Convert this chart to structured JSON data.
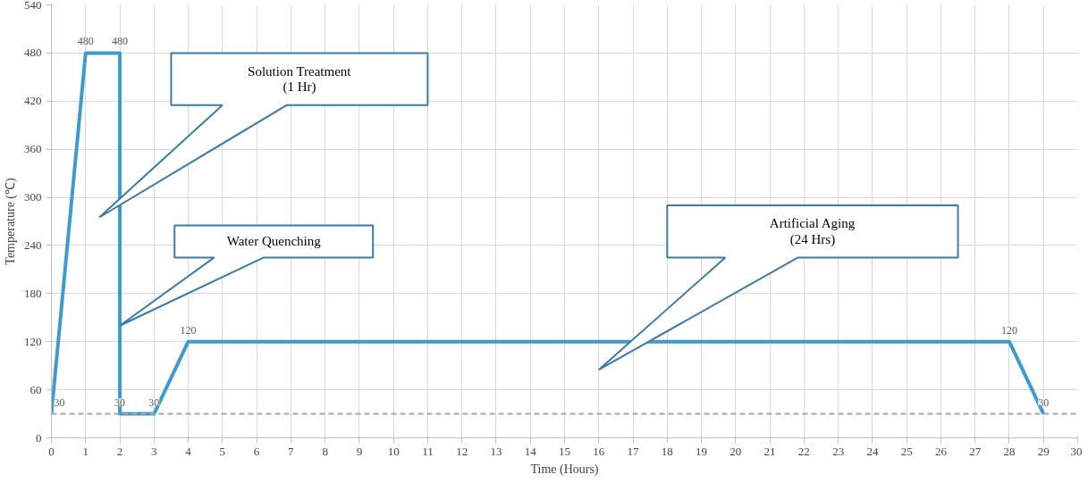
{
  "chart_data": {
    "type": "line",
    "xlabel": "Time (Hours)",
    "ylabel": "Temperature (℃)",
    "x": [
      0,
      1,
      2,
      2,
      3,
      4,
      28,
      29
    ],
    "series": [
      {
        "color": "#3d9bd0",
        "values": [
          30,
          480,
          480,
          30,
          30,
          120,
          120,
          30
        ]
      }
    ],
    "xlim": [
      0,
      30
    ],
    "xticks": [
      0,
      1,
      2,
      3,
      4,
      5,
      6,
      7,
      8,
      9,
      10,
      11,
      12,
      13,
      14,
      15,
      16,
      17,
      18,
      19,
      20,
      21,
      22,
      23,
      24,
      25,
      26,
      27,
      28,
      29,
      30
    ],
    "ylim": [
      0,
      540
    ],
    "yticks": [
      0,
      60,
      120,
      180,
      240,
      300,
      360,
      420,
      480,
      540
    ],
    "grid": true,
    "data_labels": true,
    "marker": "none",
    "line_style": "solid",
    "ref_lines": [
      {
        "axis": "y",
        "value": 30,
        "color": "#a6a6a6",
        "line_style": "dashed"
      }
    ],
    "annotations": [
      "Solution Treatment\n(1 Hr)",
      "Water Quenching",
      "Artificial Aging\n(24 Hrs)"
    ]
  }
}
